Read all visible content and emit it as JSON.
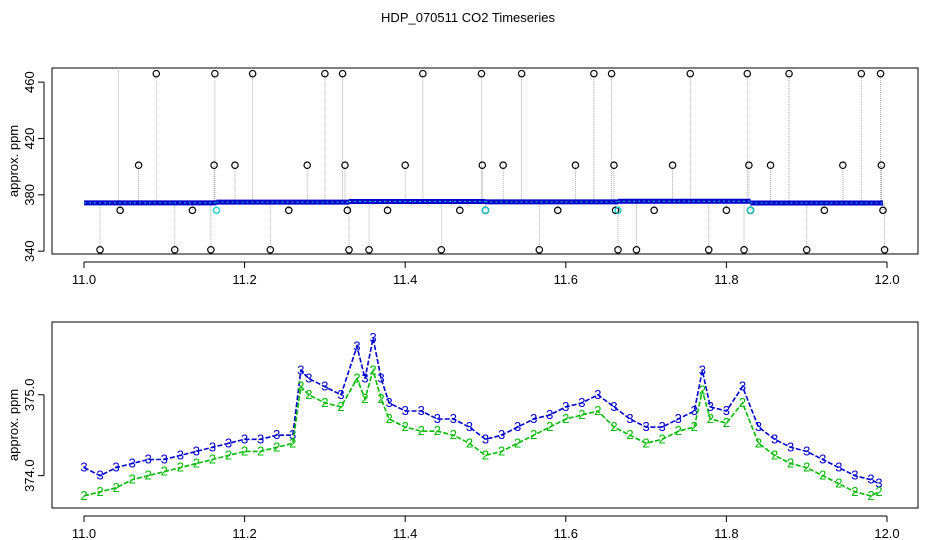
{
  "title": "HDP_070511  CO2 Timeseries",
  "colors": {
    "outlier": "#000000",
    "series_blue": "#0000cc",
    "series_green": "#00bb00",
    "marker_cyan": "#00cccc",
    "spike_line": "#999999"
  },
  "chart_data": [
    {
      "type": "scatter",
      "title": "",
      "xlabel": "",
      "ylabel": "approx. ppm",
      "xlim": [
        11.0,
        12.0
      ],
      "ylim": [
        338,
        470
      ],
      "xticks": [
        "11.0",
        "11.2",
        "11.4",
        "11.6",
        "11.8",
        "12.0"
      ],
      "yticks": [
        "340",
        "380",
        "420",
        "460"
      ],
      "baseline_series": [
        {
          "name": "",
          "x_range": [
            11.0,
            11.165
          ],
          "y": 374.3
        },
        {
          "name": "",
          "x_range": [
            11.165,
            11.33
          ],
          "y": 374.8
        },
        {
          "name": "",
          "x_range": [
            11.33,
            11.5
          ],
          "y": 375.3
        },
        {
          "name": "",
          "x_range": [
            11.5,
            11.665
          ],
          "y": 375.0
        },
        {
          "name": "",
          "x_range": [
            11.665,
            11.83
          ],
          "y": 375.4
        },
        {
          "name": "",
          "x_range": [
            11.83,
            11.995
          ],
          "y": 374.2
        }
      ],
      "outlier_points": [
        {
          "x": 11.02,
          "y": 341
        },
        {
          "x": 11.045,
          "y": 369
        },
        {
          "x": 11.068,
          "y": 401
        },
        {
          "x": 11.09,
          "y": 466
        },
        {
          "x": 11.113,
          "y": 341
        },
        {
          "x": 11.135,
          "y": 369
        },
        {
          "x": 11.158,
          "y": 341
        },
        {
          "x": 11.162,
          "y": 401
        },
        {
          "x": 11.163,
          "y": 466
        },
        {
          "x": 11.188,
          "y": 401
        },
        {
          "x": 11.21,
          "y": 466
        },
        {
          "x": 11.232,
          "y": 341
        },
        {
          "x": 11.255,
          "y": 369
        },
        {
          "x": 11.278,
          "y": 401
        },
        {
          "x": 11.3,
          "y": 466
        },
        {
          "x": 11.322,
          "y": 466
        },
        {
          "x": 11.325,
          "y": 401
        },
        {
          "x": 11.328,
          "y": 369
        },
        {
          "x": 11.33,
          "y": 341
        },
        {
          "x": 11.355,
          "y": 341
        },
        {
          "x": 11.378,
          "y": 369
        },
        {
          "x": 11.4,
          "y": 401
        },
        {
          "x": 11.422,
          "y": 466
        },
        {
          "x": 11.445,
          "y": 341
        },
        {
          "x": 11.468,
          "y": 369
        },
        {
          "x": 11.495,
          "y": 466
        },
        {
          "x": 11.496,
          "y": 401
        },
        {
          "x": 11.5,
          "y": 369
        },
        {
          "x": 11.522,
          "y": 401
        },
        {
          "x": 11.545,
          "y": 466
        },
        {
          "x": 11.567,
          "y": 341
        },
        {
          "x": 11.59,
          "y": 369
        },
        {
          "x": 11.612,
          "y": 401
        },
        {
          "x": 11.635,
          "y": 466
        },
        {
          "x": 11.657,
          "y": 466
        },
        {
          "x": 11.66,
          "y": 401
        },
        {
          "x": 11.662,
          "y": 369
        },
        {
          "x": 11.665,
          "y": 341
        },
        {
          "x": 11.688,
          "y": 341
        },
        {
          "x": 11.71,
          "y": 369
        },
        {
          "x": 11.733,
          "y": 401
        },
        {
          "x": 11.755,
          "y": 466
        },
        {
          "x": 11.778,
          "y": 341
        },
        {
          "x": 11.8,
          "y": 369
        },
        {
          "x": 11.822,
          "y": 341
        },
        {
          "x": 11.826,
          "y": 466
        },
        {
          "x": 11.828,
          "y": 401
        },
        {
          "x": 11.83,
          "y": 369
        },
        {
          "x": 11.855,
          "y": 401
        },
        {
          "x": 11.878,
          "y": 466
        },
        {
          "x": 11.9,
          "y": 341
        },
        {
          "x": 11.922,
          "y": 369
        },
        {
          "x": 11.945,
          "y": 401
        },
        {
          "x": 11.968,
          "y": 466
        },
        {
          "x": 11.992,
          "y": 466
        },
        {
          "x": 11.993,
          "y": 401
        },
        {
          "x": 11.995,
          "y": 369
        },
        {
          "x": 11.997,
          "y": 341
        }
      ],
      "cyan_points": [
        {
          "x": 11.165,
          "y": 369
        },
        {
          "x": 11.5,
          "y": 369
        },
        {
          "x": 11.665,
          "y": 369
        },
        {
          "x": 11.83,
          "y": 369
        }
      ],
      "tall_spike": {
        "x": 11.043,
        "y_top": 470
      },
      "grid": false
    },
    {
      "type": "line",
      "title": "",
      "xlabel": "",
      "ylabel": "approx. ppm",
      "xlim": [
        11.0,
        12.0
      ],
      "ylim": [
        373.6,
        375.9
      ],
      "xticks": [
        "11.0",
        "11.2",
        "11.4",
        "11.6",
        "11.8",
        "12.0"
      ],
      "yticks": [
        "374.0",
        "375.0"
      ],
      "series": [
        {
          "name": "3",
          "color": "#0000cc",
          "x": [
            11.0,
            11.02,
            11.04,
            11.06,
            11.08,
            11.1,
            11.12,
            11.14,
            11.16,
            11.18,
            11.2,
            11.22,
            11.24,
            11.26,
            11.27,
            11.28,
            11.3,
            11.32,
            11.34,
            11.35,
            11.36,
            11.37,
            11.38,
            11.4,
            11.42,
            11.44,
            11.46,
            11.48,
            11.5,
            11.52,
            11.54,
            11.56,
            11.58,
            11.6,
            11.62,
            11.64,
            11.66,
            11.68,
            11.7,
            11.72,
            11.74,
            11.76,
            11.77,
            11.78,
            11.8,
            11.82,
            11.84,
            11.86,
            11.88,
            11.9,
            11.92,
            11.94,
            11.96,
            11.98,
            11.99
          ],
          "values": [
            374.1,
            374.0,
            374.1,
            374.15,
            374.2,
            374.2,
            374.25,
            374.3,
            374.35,
            374.4,
            374.45,
            374.45,
            374.5,
            374.5,
            375.3,
            375.2,
            375.1,
            375.0,
            375.6,
            375.2,
            375.7,
            375.2,
            374.9,
            374.8,
            374.8,
            374.7,
            374.7,
            374.6,
            374.45,
            374.5,
            374.6,
            374.7,
            374.75,
            374.85,
            374.9,
            375.0,
            374.85,
            374.7,
            374.6,
            374.6,
            374.7,
            374.8,
            375.3,
            374.85,
            374.8,
            375.1,
            374.6,
            374.45,
            374.35,
            374.3,
            374.2,
            374.1,
            374.0,
            373.95,
            373.9
          ]
        },
        {
          "name": "2",
          "color": "#00bb00",
          "x": [
            11.0,
            11.02,
            11.04,
            11.06,
            11.08,
            11.1,
            11.12,
            11.14,
            11.16,
            11.18,
            11.2,
            11.22,
            11.24,
            11.26,
            11.27,
            11.28,
            11.3,
            11.32,
            11.34,
            11.35,
            11.36,
            11.37,
            11.38,
            11.4,
            11.42,
            11.44,
            11.46,
            11.48,
            11.5,
            11.52,
            11.54,
            11.56,
            11.58,
            11.6,
            11.62,
            11.64,
            11.66,
            11.68,
            11.7,
            11.72,
            11.74,
            11.76,
            11.77,
            11.78,
            11.8,
            11.82,
            11.84,
            11.86,
            11.88,
            11.9,
            11.92,
            11.94,
            11.96,
            11.98,
            11.99
          ],
          "values": [
            373.75,
            373.8,
            373.85,
            373.95,
            374.0,
            374.05,
            374.1,
            374.15,
            374.2,
            374.25,
            374.3,
            374.3,
            374.35,
            374.4,
            375.1,
            375.0,
            374.9,
            374.85,
            375.2,
            374.95,
            375.3,
            374.95,
            374.7,
            374.6,
            374.55,
            374.55,
            374.5,
            374.4,
            374.25,
            374.3,
            374.4,
            374.5,
            374.6,
            374.7,
            374.75,
            374.8,
            374.6,
            374.5,
            374.4,
            374.45,
            374.55,
            374.6,
            375.05,
            374.7,
            374.65,
            374.9,
            374.4,
            374.25,
            374.15,
            374.1,
            374.0,
            373.9,
            373.8,
            373.75,
            373.8
          ]
        }
      ],
      "grid": false
    }
  ]
}
